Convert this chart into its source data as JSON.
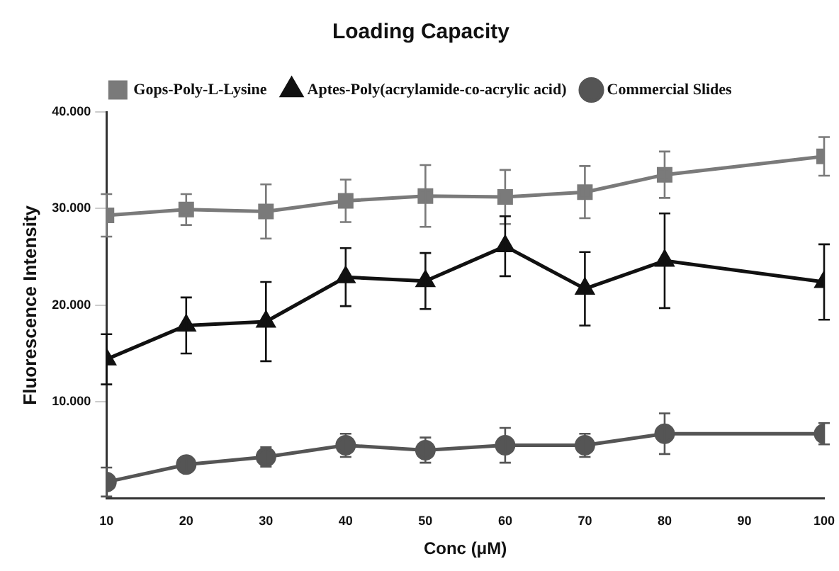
{
  "chart_data": {
    "type": "line",
    "title": "Loading Capacity",
    "xlabel": "Conc (μM)",
    "ylabel": "Fluorescence Intensity",
    "x": [
      10,
      20,
      30,
      40,
      50,
      60,
      70,
      80,
      100
    ],
    "xlim": [
      10,
      100
    ],
    "xticks": [
      10,
      20,
      30,
      40,
      50,
      60,
      70,
      80,
      90,
      100
    ],
    "ylim": [
      0,
      40000
    ],
    "yticks": [
      {
        "value": 10000,
        "label": "10.000"
      },
      {
        "value": 20000,
        "label": "20.000"
      },
      {
        "value": 30000,
        "label": "30.000"
      },
      {
        "value": 40000,
        "label": "40.000"
      }
    ],
    "grid": false,
    "legend": "top",
    "line_style": "solid",
    "series": [
      {
        "name": "Gops-Poly-L-Lysine",
        "color": "#7a7a7a",
        "marker": "square",
        "values": [
          29300,
          29900,
          29700,
          30800,
          31300,
          31200,
          31700,
          33500,
          35400
        ],
        "errors": [
          2200,
          1600,
          2800,
          2200,
          3200,
          2800,
          2700,
          2400,
          2000
        ]
      },
      {
        "name": "Aptes-Poly(acrylamide-co-acrylic acid)",
        "color": "#111111",
        "marker": "triangle",
        "values": [
          14400,
          17900,
          18300,
          22900,
          22500,
          26100,
          21700,
          24600,
          22400
        ],
        "errors": [
          2600,
          2900,
          4100,
          3000,
          2900,
          3100,
          3800,
          4900,
          3900
        ]
      },
      {
        "name": "Commercial Slides",
        "color": "#555555",
        "marker": "circle",
        "values": [
          1700,
          3500,
          4300,
          5500,
          5000,
          5500,
          5500,
          6700,
          6700
        ],
        "errors": [
          1500,
          800,
          1000,
          1200,
          1300,
          1800,
          1200,
          2100,
          1100
        ]
      }
    ]
  }
}
